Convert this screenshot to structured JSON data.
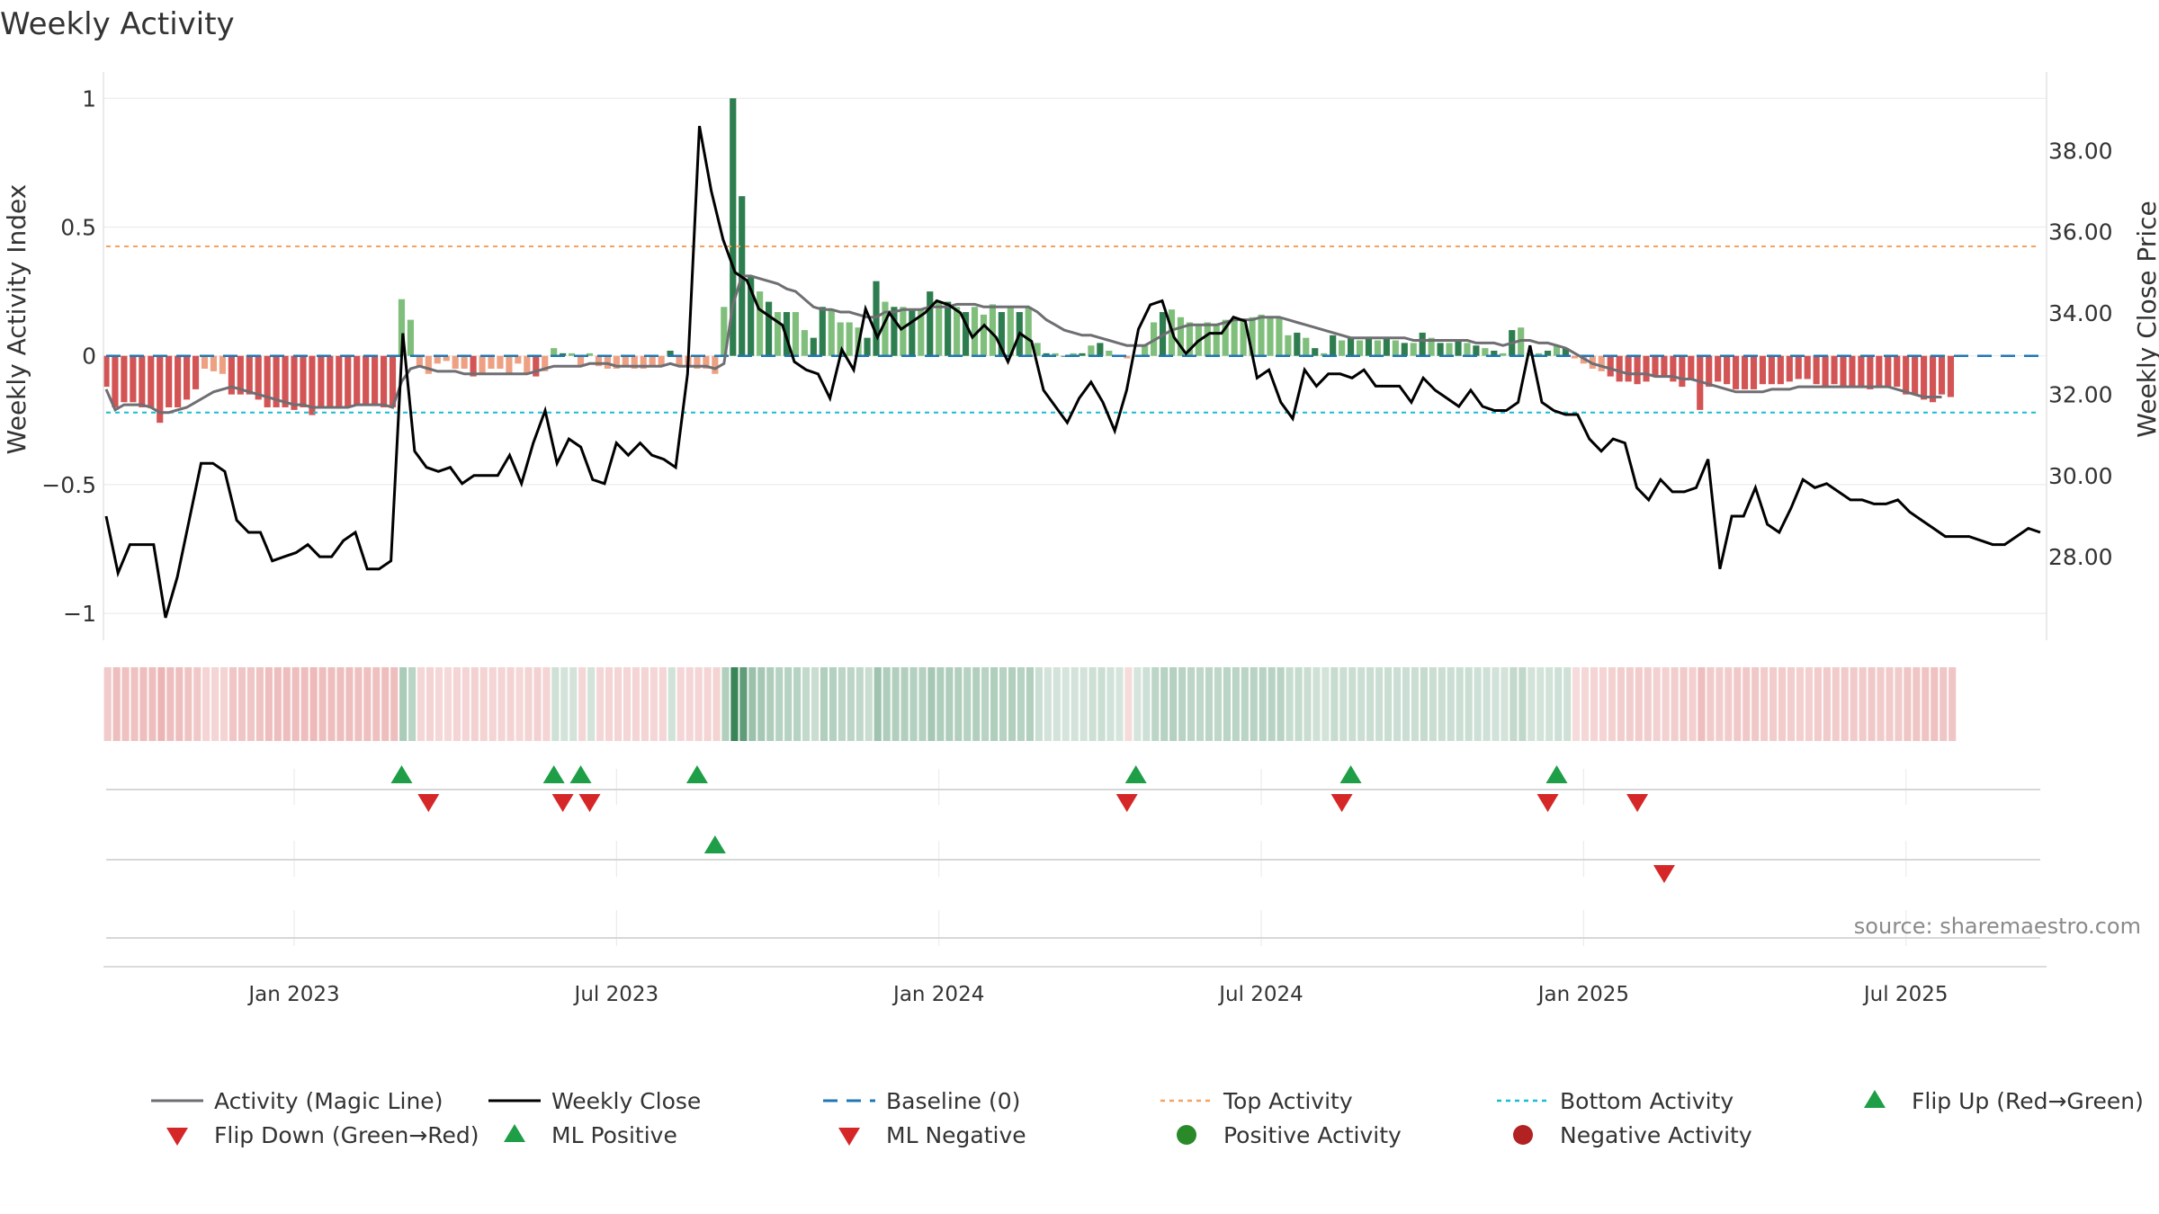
{
  "chart_data": {
    "type": "bar",
    "title": "Weekly Activity",
    "ylabel": "Weekly Activity Index",
    "y2label": "Weekly Close Price",
    "ylim": [
      -1.08,
      1.05
    ],
    "y2lim": [
      26.1,
      39.6
    ],
    "y_ticks": [
      1,
      0.5,
      0,
      -0.5,
      -1
    ],
    "y_tick_labels": [
      "1",
      "0.5",
      "0",
      "−0.5",
      "−1"
    ],
    "y2_ticks": [
      38,
      36,
      34,
      32,
      30,
      28
    ],
    "y2_tick_labels": [
      "38.00",
      "36.00",
      "34.00",
      "32.00",
      "30.00",
      "28.00"
    ],
    "x_ticks": [
      {
        "week": 21,
        "label": "Jan 2023"
      },
      {
        "week": 57,
        "label": "Jul 2023"
      },
      {
        "week": 93,
        "label": "Jan 2024"
      },
      {
        "week": 129,
        "label": "Jul 2024"
      },
      {
        "week": 165,
        "label": "Jan 2025"
      },
      {
        "week": 201,
        "label": "Jul 2025"
      }
    ],
    "n_weeks": 217,
    "top_activity": 0.425,
    "bottom_activity": -0.22,
    "baseline": 0,
    "activity": [
      -0.12,
      -0.2,
      -0.18,
      -0.18,
      -0.2,
      -0.2,
      -0.26,
      -0.2,
      -0.2,
      -0.17,
      -0.13,
      -0.05,
      -0.06,
      -0.07,
      -0.15,
      -0.15,
      -0.15,
      -0.17,
      -0.2,
      -0.2,
      -0.2,
      -0.21,
      -0.2,
      -0.23,
      -0.2,
      -0.2,
      -0.2,
      -0.2,
      -0.19,
      -0.19,
      -0.19,
      -0.2,
      -0.2,
      0.22,
      0.14,
      -0.04,
      -0.07,
      -0.03,
      -0.02,
      -0.05,
      -0.05,
      -0.08,
      -0.07,
      -0.05,
      -0.05,
      -0.07,
      -0.03,
      -0.07,
      -0.08,
      -0.06,
      0.03,
      0.01,
      0.01,
      -0.04,
      0.01,
      -0.04,
      -0.05,
      -0.05,
      -0.04,
      -0.05,
      -0.05,
      -0.04,
      -0.04,
      0.02,
      -0.04,
      -0.04,
      -0.05,
      -0.05,
      -0.07,
      0.19,
      1.0,
      0.62,
      0.31,
      0.25,
      0.21,
      0.17,
      0.17,
      0.17,
      0.1,
      0.07,
      0.19,
      0.18,
      0.13,
      0.13,
      0.11,
      0.07,
      0.29,
      0.21,
      0.19,
      0.19,
      0.18,
      0.18,
      0.25,
      0.21,
      0.21,
      0.19,
      0.17,
      0.19,
      0.16,
      0.2,
      0.17,
      0.19,
      0.17,
      0.19,
      0.05,
      0.01,
      0.01,
      0.0,
      0.01,
      0.01,
      0.04,
      0.05,
      0.02,
      0.0,
      -0.01,
      0.0,
      0.04,
      0.13,
      0.17,
      0.18,
      0.15,
      0.13,
      0.12,
      0.13,
      0.12,
      0.14,
      0.14,
      0.14,
      0.15,
      0.16,
      0.15,
      0.15,
      0.08,
      0.09,
      0.07,
      0.03,
      0.01,
      0.08,
      0.06,
      0.07,
      0.06,
      0.07,
      0.06,
      0.07,
      0.06,
      0.05,
      0.05,
      0.09,
      0.07,
      0.05,
      0.05,
      0.06,
      0.05,
      0.04,
      0.03,
      0.02,
      0.01,
      0.1,
      0.11,
      0.01,
      0.01,
      0.02,
      0.04,
      0.03,
      -0.01,
      -0.03,
      -0.05,
      -0.06,
      -0.08,
      -0.1,
      -0.1,
      -0.11,
      -0.1,
      -0.08,
      -0.08,
      -0.1,
      -0.12,
      -0.09,
      -0.21,
      -0.12,
      -0.1,
      -0.11,
      -0.13,
      -0.13,
      -0.13,
      -0.11,
      -0.11,
      -0.11,
      -0.1,
      -0.09,
      -0.09,
      -0.11,
      -0.12,
      -0.11,
      -0.12,
      -0.12,
      -0.12,
      -0.13,
      -0.12,
      -0.12,
      -0.12,
      -0.15,
      -0.15,
      -0.17,
      -0.18,
      -0.15,
      -0.16
    ],
    "magic_line": [
      -0.13,
      -0.21,
      -0.19,
      -0.19,
      -0.19,
      -0.2,
      -0.22,
      -0.22,
      -0.21,
      -0.2,
      -0.18,
      -0.16,
      -0.14,
      -0.13,
      -0.12,
      -0.13,
      -0.14,
      -0.15,
      -0.16,
      -0.17,
      -0.18,
      -0.19,
      -0.19,
      -0.2,
      -0.2,
      -0.2,
      -0.2,
      -0.2,
      -0.19,
      -0.19,
      -0.19,
      -0.19,
      -0.2,
      -0.1,
      -0.05,
      -0.04,
      -0.05,
      -0.06,
      -0.06,
      -0.06,
      -0.07,
      -0.07,
      -0.07,
      -0.07,
      -0.07,
      -0.07,
      -0.07,
      -0.07,
      -0.06,
      -0.05,
      -0.04,
      -0.04,
      -0.04,
      -0.04,
      -0.03,
      -0.03,
      -0.03,
      -0.04,
      -0.04,
      -0.04,
      -0.04,
      -0.04,
      -0.04,
      -0.03,
      -0.04,
      -0.04,
      -0.04,
      -0.04,
      -0.05,
      -0.03,
      0.2,
      0.31,
      0.31,
      0.3,
      0.29,
      0.28,
      0.26,
      0.25,
      0.22,
      0.19,
      0.18,
      0.18,
      0.17,
      0.17,
      0.16,
      0.15,
      0.15,
      0.17,
      0.17,
      0.18,
      0.18,
      0.18,
      0.19,
      0.19,
      0.19,
      0.2,
      0.2,
      0.2,
      0.19,
      0.19,
      0.19,
      0.19,
      0.19,
      0.19,
      0.17,
      0.14,
      0.12,
      0.1,
      0.09,
      0.08,
      0.08,
      0.07,
      0.06,
      0.05,
      0.04,
      0.04,
      0.04,
      0.06,
      0.08,
      0.1,
      0.11,
      0.12,
      0.12,
      0.12,
      0.12,
      0.13,
      0.14,
      0.14,
      0.14,
      0.15,
      0.15,
      0.15,
      0.14,
      0.13,
      0.12,
      0.11,
      0.1,
      0.09,
      0.08,
      0.07,
      0.07,
      0.07,
      0.07,
      0.07,
      0.07,
      0.07,
      0.06,
      0.06,
      0.06,
      0.06,
      0.06,
      0.06,
      0.06,
      0.05,
      0.05,
      0.05,
      0.04,
      0.05,
      0.06,
      0.06,
      0.05,
      0.05,
      0.04,
      0.03,
      0.01,
      -0.01,
      -0.03,
      -0.04,
      -0.05,
      -0.06,
      -0.07,
      -0.07,
      -0.07,
      -0.08,
      -0.08,
      -0.08,
      -0.09,
      -0.09,
      -0.1,
      -0.11,
      -0.12,
      -0.13,
      -0.14,
      -0.14,
      -0.14,
      -0.14,
      -0.13,
      -0.13,
      -0.13,
      -0.12,
      -0.12,
      -0.12,
      -0.12,
      -0.12,
      -0.12,
      -0.12,
      -0.12,
      -0.12,
      -0.12,
      -0.12,
      -0.13,
      -0.14,
      -0.15,
      -0.16,
      -0.16,
      -0.16
    ],
    "weekly_close": [
      29,
      27.6,
      28.3,
      28.3,
      28.3,
      26.5,
      27.5,
      28.9,
      30.3,
      30.3,
      30.1,
      28.9,
      28.6,
      28.6,
      27.9,
      28,
      28.1,
      28.3,
      28,
      28,
      28.4,
      28.6,
      27.7,
      27.7,
      27.9,
      33.5,
      30.6,
      30.2,
      30.1,
      30.2,
      29.8,
      30,
      30,
      30,
      30.5,
      29.8,
      30.8,
      31.6,
      30.3,
      30.9,
      30.7,
      29.9,
      29.8,
      30.8,
      30.5,
      30.8,
      30.5,
      30.4,
      30.2,
      32.5,
      38.6,
      37,
      35.8,
      35,
      34.8,
      34.1,
      33.9,
      33.7,
      32.8,
      32.6,
      32.5,
      31.9,
      33.1,
      32.6,
      34.1,
      33.4,
      34,
      33.6,
      33.8,
      34,
      34.3,
      34.2,
      34,
      33.4,
      33.7,
      33.4,
      32.8,
      33.5,
      33.3,
      32.1,
      31.7,
      31.3,
      31.9,
      32.3,
      31.8,
      31.1,
      32.1,
      33.6,
      34.2,
      34.3,
      33.4,
      33,
      33.3,
      33.5,
      33.5,
      33.9,
      33.8,
      32.4,
      32.6,
      31.8,
      31.4,
      32.6,
      32.2,
      32.5,
      32.5,
      32.4,
      32.6,
      32.2,
      32.2,
      32.2,
      31.8,
      32.4,
      32.1,
      31.9,
      31.7,
      32.1,
      31.7,
      31.6,
      31.6,
      31.8,
      33.2,
      31.8,
      31.6,
      31.5,
      31.5,
      30.9,
      30.6,
      30.9,
      30.8,
      29.7,
      29.4,
      29.9,
      29.6,
      29.6,
      29.7,
      30.4,
      27.7,
      29,
      29,
      29.7,
      28.8,
      28.6,
      29.2,
      29.9,
      29.7,
      29.8,
      29.6,
      29.4,
      29.4,
      29.3,
      29.3,
      29.4,
      29.1,
      28.9,
      28.7,
      28.5,
      28.5,
      28.5,
      28.4,
      28.3,
      28.3,
      28.5,
      28.7,
      28.6
    ],
    "flip_up_weeks": [
      33,
      50,
      53,
      66,
      115,
      139,
      162
    ],
    "flip_down_weeks": [
      36,
      51,
      54,
      114,
      138,
      161,
      171
    ],
    "ml_positive_weeks": [
      68
    ],
    "ml_negative_weeks": [
      174
    ],
    "legend": [
      {
        "key": "activity",
        "label": "Activity (Magic Line)",
        "symbol": "line",
        "color": "#6e6e73"
      },
      {
        "key": "close",
        "label": "Weekly Close",
        "symbol": "line",
        "color": "#000000"
      },
      {
        "key": "baseline",
        "label": "Baseline (0)",
        "symbol": "dash",
        "color": "#1f77b4"
      },
      {
        "key": "top",
        "label": "Top Activity",
        "symbol": "dot",
        "color": "#f4a261"
      },
      {
        "key": "bottom",
        "label": "Bottom Activity",
        "symbol": "dot",
        "color": "#17becf"
      },
      {
        "key": "flip_up",
        "label": "Flip Up (Red→Green)",
        "symbol": "tri-up",
        "color": "#1e9e46"
      },
      {
        "key": "flip_down",
        "label": "Flip Down (Green→Red)",
        "symbol": "tri-down",
        "color": "#d62728"
      },
      {
        "key": "ml_pos",
        "label": "ML Positive",
        "symbol": "tri-up",
        "color": "#1e9e46"
      },
      {
        "key": "ml_neg",
        "label": "ML Negative",
        "symbol": "tri-down",
        "color": "#d62728"
      },
      {
        "key": "pos",
        "label": "Positive Activity",
        "symbol": "circle",
        "color": "#2a8a2a"
      },
      {
        "key": "neg",
        "label": "Negative Activity",
        "symbol": "circle",
        "color": "#b22222"
      }
    ],
    "source": "source: sharemaestro.com",
    "colors": {
      "pos_strong": "#2e7d4f",
      "pos_light": "#7fbf7b",
      "neg_strong": "#d35454",
      "neg_light": "#eea082",
      "magic_line": "#6e6e73",
      "close": "#000000",
      "baseline": "#1f77b4",
      "top": "#f4a261",
      "bottom": "#17becf",
      "up": "#1e9e46",
      "down": "#d62728"
    }
  }
}
